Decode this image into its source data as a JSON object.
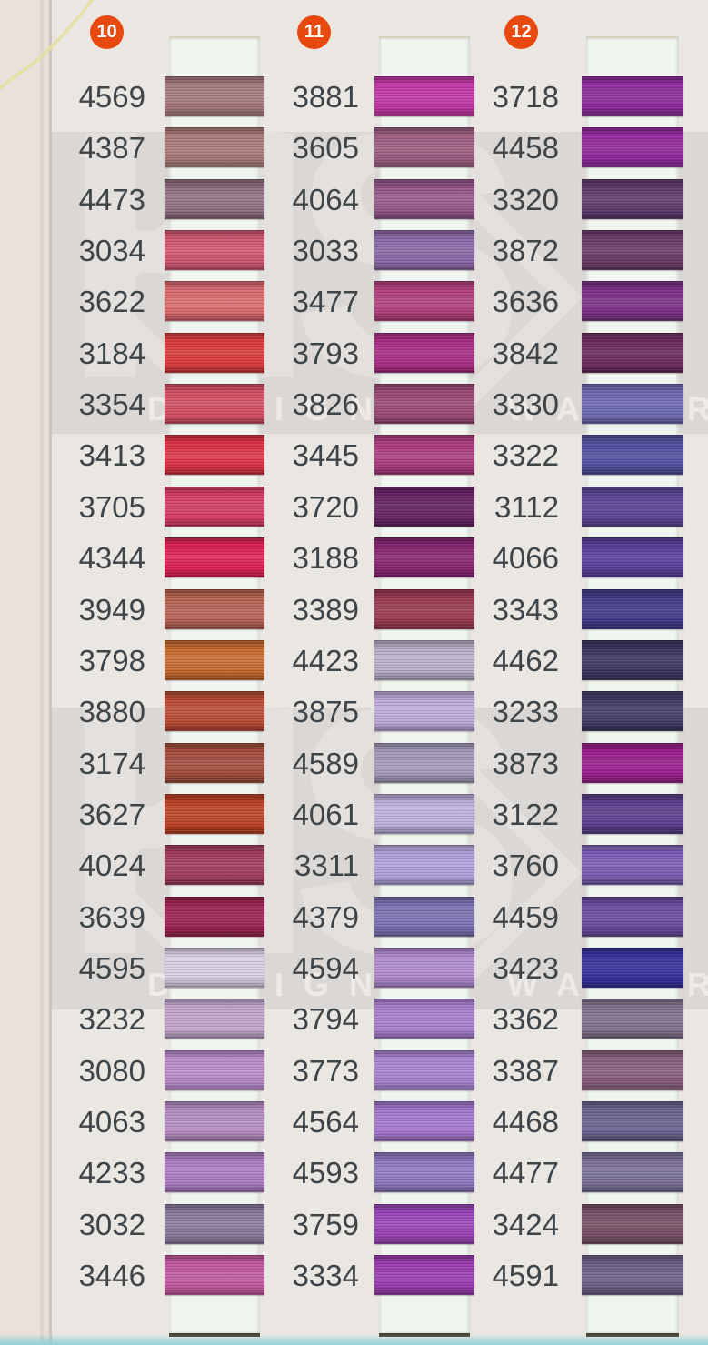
{
  "badge_color": "#e8490f",
  "watermark": {
    "letters": "HS",
    "subtext": "DESIGNER WARDROBE"
  },
  "columns": [
    {
      "badge": "10",
      "swatches": [
        {
          "code": "4569",
          "color": "#a5797d"
        },
        {
          "code": "4387",
          "color": "#a87b78"
        },
        {
          "code": "4473",
          "color": "#90707f"
        },
        {
          "code": "3034",
          "color": "#d05670"
        },
        {
          "code": "3622",
          "color": "#d96a6e"
        },
        {
          "code": "3184",
          "color": "#da3a3b"
        },
        {
          "code": "3354",
          "color": "#d54f62"
        },
        {
          "code": "3413",
          "color": "#dc3145"
        },
        {
          "code": "3705",
          "color": "#d63c66"
        },
        {
          "code": "4344",
          "color": "#dd2052"
        },
        {
          "code": "3949",
          "color": "#b76353"
        },
        {
          "code": "3798",
          "color": "#c66a2e"
        },
        {
          "code": "3880",
          "color": "#b84b34"
        },
        {
          "code": "3174",
          "color": "#a34c3c"
        },
        {
          "code": "3627",
          "color": "#bc4224"
        },
        {
          "code": "4024",
          "color": "#a03b5b"
        },
        {
          "code": "3639",
          "color": "#9b2350"
        },
        {
          "code": "4595",
          "color": "#d9cfe4"
        },
        {
          "code": "3232",
          "color": "#c2a6cb"
        },
        {
          "code": "3080",
          "color": "#bb8cca"
        },
        {
          "code": "4063",
          "color": "#b58cc4"
        },
        {
          "code": "4233",
          "color": "#ad7cc2"
        },
        {
          "code": "3032",
          "color": "#8b7a9e"
        },
        {
          "code": "3446",
          "color": "#c258a0"
        }
      ]
    },
    {
      "badge": "11",
      "swatches": [
        {
          "code": "3881",
          "color": "#c235a6"
        },
        {
          "code": "3605",
          "color": "#9d5d81"
        },
        {
          "code": "4064",
          "color": "#94578b"
        },
        {
          "code": "3033",
          "color": "#8c69a7"
        },
        {
          "code": "3477",
          "color": "#b23f7c"
        },
        {
          "code": "3793",
          "color": "#ab2c86"
        },
        {
          "code": "3826",
          "color": "#9b4a75"
        },
        {
          "code": "3445",
          "color": "#ac3b80"
        },
        {
          "code": "3720",
          "color": "#662264"
        },
        {
          "code": "3188",
          "color": "#872471"
        },
        {
          "code": "3389",
          "color": "#9a3950"
        },
        {
          "code": "4423",
          "color": "#b9b0c9"
        },
        {
          "code": "3875",
          "color": "#c0abdc"
        },
        {
          "code": "4589",
          "color": "#a49abb"
        },
        {
          "code": "4061",
          "color": "#beb1e0"
        },
        {
          "code": "3311",
          "color": "#b1a2db"
        },
        {
          "code": "4379",
          "color": "#7a72b3"
        },
        {
          "code": "4594",
          "color": "#b18bcf"
        },
        {
          "code": "3794",
          "color": "#aa7ece"
        },
        {
          "code": "3773",
          "color": "#aa84d3"
        },
        {
          "code": "4564",
          "color": "#a577cd"
        },
        {
          "code": "4593",
          "color": "#9078c1"
        },
        {
          "code": "3759",
          "color": "#9a43b8"
        },
        {
          "code": "3334",
          "color": "#9a3cb0"
        }
      ]
    },
    {
      "badge": "12",
      "swatches": [
        {
          "code": "3718",
          "color": "#8d2b9c"
        },
        {
          "code": "4458",
          "color": "#92289c"
        },
        {
          "code": "3320",
          "color": "#5e3a6c"
        },
        {
          "code": "3872",
          "color": "#6a3a66"
        },
        {
          "code": "3636",
          "color": "#7b2f88"
        },
        {
          "code": "3842",
          "color": "#6c2a5f"
        },
        {
          "code": "3330",
          "color": "#6d6ab3"
        },
        {
          "code": "3322",
          "color": "#514f9e"
        },
        {
          "code": "3112",
          "color": "#5a4394"
        },
        {
          "code": "4066",
          "color": "#5a3e9c"
        },
        {
          "code": "3343",
          "color": "#42398a"
        },
        {
          "code": "4462",
          "color": "#3b355f"
        },
        {
          "code": "3233",
          "color": "#3f3a66"
        },
        {
          "code": "3873",
          "color": "#9a1d8c"
        },
        {
          "code": "3122",
          "color": "#5a3e8c"
        },
        {
          "code": "3760",
          "color": "#7c5cb4"
        },
        {
          "code": "4459",
          "color": "#6a4a9e"
        },
        {
          "code": "3423",
          "color": "#34319b"
        },
        {
          "code": "3362",
          "color": "#82708c"
        },
        {
          "code": "3387",
          "color": "#895e7d"
        },
        {
          "code": "4468",
          "color": "#6b6190"
        },
        {
          "code": "4477",
          "color": "#7a7099"
        },
        {
          "code": "3424",
          "color": "#784e66"
        },
        {
          "code": "4591",
          "color": "#6d6087"
        }
      ]
    }
  ]
}
